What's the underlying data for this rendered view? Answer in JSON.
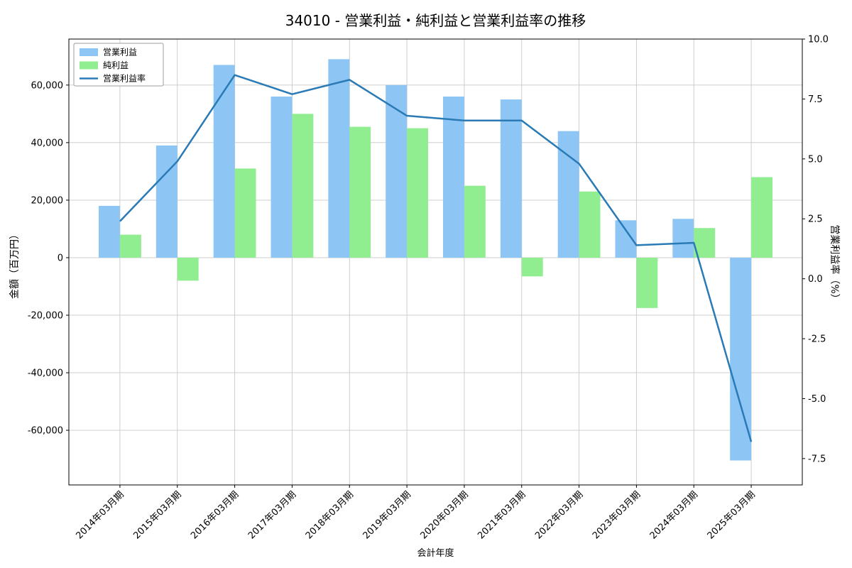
{
  "title": "34010 - 営業利益・純利益と営業利益率の推移",
  "chart_data": {
    "type": "bar",
    "categories": [
      "2014年03月期",
      "2015年03月期",
      "2016年03月期",
      "2017年03月期",
      "2018年03月期",
      "2019年03月期",
      "2020年03月期",
      "2021年03月期",
      "2022年03月期",
      "2023年03月期",
      "2024年03月期",
      "2025年03月期"
    ],
    "series": [
      {
        "name": "営業利益",
        "type": "bar",
        "axis": "left",
        "color": "#8DC6F5",
        "values": [
          18000,
          39000,
          67000,
          56000,
          69000,
          60000,
          56000,
          55000,
          44000,
          13000,
          13500,
          -70500
        ]
      },
      {
        "name": "純利益",
        "type": "bar",
        "axis": "left",
        "color": "#90EE90",
        "values": [
          8000,
          -8000,
          31000,
          50000,
          45500,
          45000,
          25000,
          -6500,
          23000,
          -17500,
          10300,
          28000
        ]
      },
      {
        "name": "営業利益率",
        "type": "line",
        "axis": "right",
        "color": "#2A7AB5",
        "values": [
          2.4,
          4.9,
          8.5,
          7.7,
          8.3,
          6.8,
          6.6,
          6.6,
          4.8,
          1.4,
          1.5,
          -6.8
        ]
      }
    ],
    "xlabel": "会計年度",
    "left_axis": {
      "label": "金額（百万円）",
      "min": -79000,
      "max": 76000,
      "ticks": [
        -60000,
        -40000,
        -20000,
        0,
        20000,
        40000,
        60000
      ]
    },
    "right_axis": {
      "label": "営業利益率（%）",
      "min": -8.6,
      "max": 10.0,
      "ticks": [
        -7.5,
        -5.0,
        -2.5,
        0.0,
        2.5,
        5.0,
        7.5,
        10.0
      ]
    },
    "grid": true,
    "legend_position": "upper-left",
    "colors": {
      "grid": "#c8c8c8",
      "axis": "#000000",
      "legend_border": "#9e9e9e"
    }
  }
}
